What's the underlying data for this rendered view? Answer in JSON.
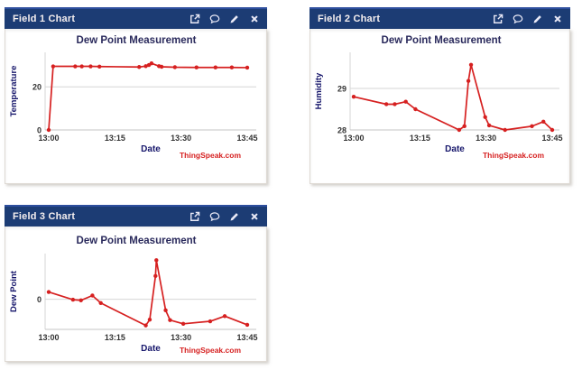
{
  "page": {
    "background_color": "#ffffff"
  },
  "colors": {
    "header_bg": "#1c3c74",
    "header_accent": "#2e4f9e",
    "header_text": "#f5efef",
    "card_border": "#ded9d3",
    "grid_line": "#d6d6d6",
    "axis_line": "#c4c4c4",
    "chart_line_red": "#d62020",
    "chart_title_text": "#2a2a5c",
    "axis_label_text": "#16166b",
    "tick_text": "#333333",
    "watermark_red": "#d62020"
  },
  "cards": [
    {
      "header": {
        "title": "Field 1 Chart",
        "icons": [
          "external-link",
          "comment",
          "edit",
          "close"
        ]
      }
    },
    {
      "header": {
        "title": "Field 2 Chart",
        "icons": [
          "external-link",
          "comment",
          "edit",
          "close"
        ]
      }
    },
    {
      "header": {
        "title": "Field 3 Chart",
        "icons": [
          "external-link",
          "comment",
          "edit",
          "close"
        ]
      }
    }
  ],
  "chart_data": [
    {
      "type": "line",
      "title": "Dew Point Measurement",
      "xlabel": "Date",
      "ylabel": "Temperature",
      "watermark": "ThingSpeak.com",
      "line_color": "#d62020",
      "ylim": [
        0,
        36
      ],
      "yticks": [
        0,
        20
      ],
      "ytick_labels": [
        "0",
        "20"
      ],
      "xticks": {
        "minutes": [
          0,
          15,
          30,
          45
        ],
        "labels": [
          "13:00",
          "13:15",
          "13:30",
          "13:45"
        ]
      },
      "x_minutes": [
        0,
        1,
        6,
        7.5,
        9.5,
        11.5,
        20.5,
        22,
        22.7,
        23.3,
        25,
        25.6,
        28.6,
        33.5,
        37.8,
        41.5,
        45
      ],
      "values": [
        0,
        29.5,
        29.5,
        29.5,
        29.5,
        29.4,
        29.2,
        29.6,
        30.1,
        30.9,
        29.6,
        29.3,
        29.1,
        29.0,
        29.0,
        29.0,
        28.9
      ],
      "grid": true,
      "legend": "none"
    },
    {
      "type": "line",
      "title": "Dew Point Measurement",
      "xlabel": "Date",
      "ylabel": "Humidity",
      "watermark": "ThingSpeak.com",
      "line_color": "#d62020",
      "ylim": [
        28,
        29.87
      ],
      "yticks": [
        28,
        29
      ],
      "ytick_labels": [
        "28",
        "29"
      ],
      "xticks": {
        "minutes": [
          0,
          15,
          30,
          45
        ],
        "labels": [
          "13:00",
          "13:15",
          "13:30",
          "13:45"
        ]
      },
      "x_minutes": [
        0,
        7.4,
        9.3,
        11.8,
        14,
        23.9,
        25.1,
        26,
        26.6,
        29.8,
        30.7,
        34.3,
        40.4,
        43,
        45
      ],
      "values": [
        28.8,
        28.62,
        28.62,
        28.68,
        28.5,
        28.0,
        28.09,
        29.18,
        29.57,
        28.31,
        28.11,
        28.0,
        28.09,
        28.2,
        28.0
      ],
      "grid": true,
      "legend": "none"
    },
    {
      "type": "line",
      "title": "Dew Point Measurement",
      "xlabel": "Date",
      "ylabel": "Dew Point",
      "watermark": "ThingSpeak.com",
      "line_color": "#d62020",
      "ylim": [
        -1.45,
        2.2
      ],
      "yticks": [
        0
      ],
      "ytick_labels": [
        "0"
      ],
      "xticks": {
        "minutes": [
          0,
          15,
          30,
          45
        ],
        "labels": [
          "13:00",
          "13:15",
          "13:30",
          "13:45"
        ]
      },
      "x_minutes": [
        0,
        5.5,
        7.3,
        9.9,
        11.8,
        22,
        22.9,
        24.2,
        24.4,
        26.5,
        27.5,
        30.5,
        36.6,
        39.9,
        45
      ],
      "values": [
        0.35,
        -0.02,
        -0.05,
        0.18,
        -0.18,
        -1.26,
        -0.98,
        1.12,
        1.88,
        -0.53,
        -1.0,
        -1.18,
        -1.06,
        -0.81,
        -1.23
      ],
      "grid": true,
      "legend": "none"
    }
  ]
}
